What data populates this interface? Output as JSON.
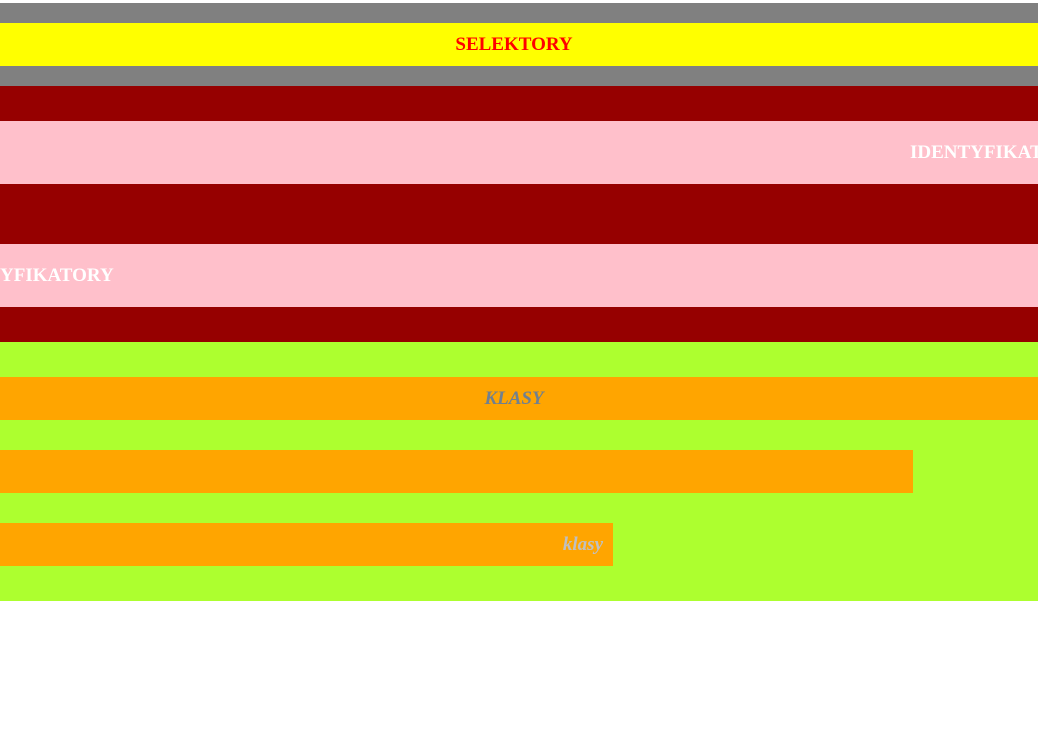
{
  "sections": {
    "selektory": {
      "heading": "SELEKTORY"
    },
    "identyfikatory": {
      "bar1_text": "IDENTYFIKATORY",
      "bar2_text": "YFIKATORY"
    },
    "klasy": {
      "bar1_text": "KLASY",
      "bar3_text": "klasy"
    }
  },
  "colors": {
    "gray": "#808080",
    "yellow": "#ffff00",
    "red": "#ff0000",
    "dark_red": "#960000",
    "pink": "#ffc0cb",
    "white": "#ffffff",
    "green_yellow": "#adff2f",
    "orange": "#ffa500",
    "slate_gray": "#708090",
    "silver": "#c0c0c0"
  }
}
